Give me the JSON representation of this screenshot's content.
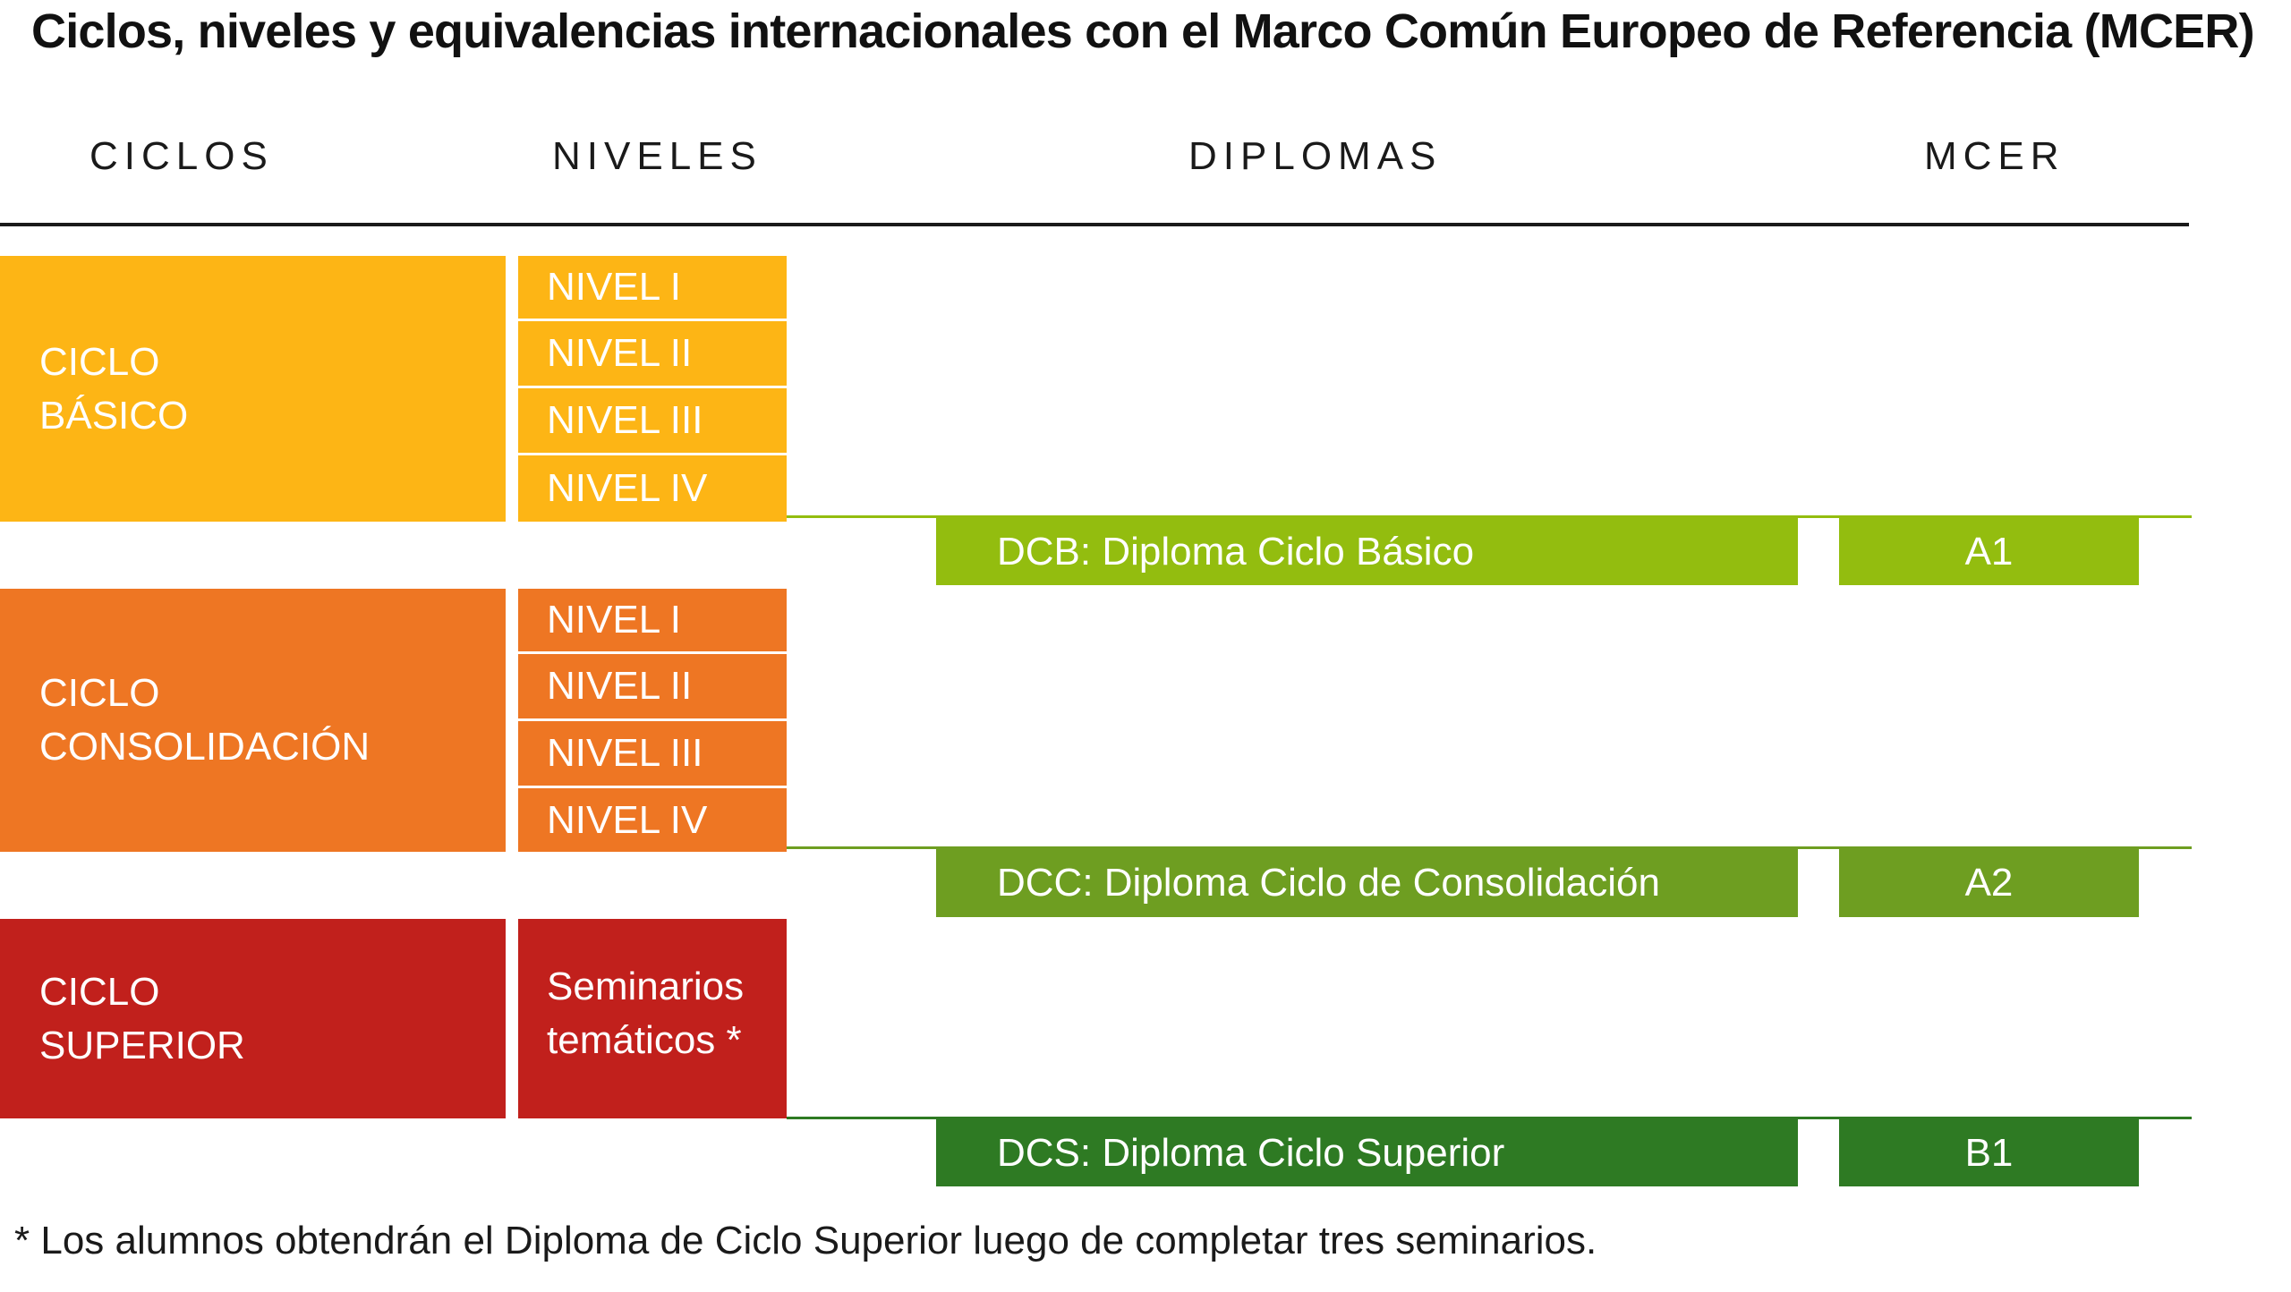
{
  "title": "Ciclos, niveles y equivalencias internacionales con el Marco Común Europeo de Referencia (MCER)",
  "headers": {
    "ciclos": "CICLOS",
    "niveles": "NIVELES",
    "diplomas": "DIPLOMAS",
    "mcer": "MCER"
  },
  "cycles": [
    {
      "line1": "CICLO",
      "line2": "BÁSICO",
      "color": "#FDB515",
      "levels": [
        "NIVEL I",
        "NIVEL II",
        "NIVEL III",
        "NIVEL IV"
      ],
      "diploma": "DCB: Diploma Ciclo Básico",
      "mcer": "A1",
      "green": "#93BD0F"
    },
    {
      "line1": "CICLO",
      "line2": "CONSOLIDACIÓN",
      "color": "#EE7623",
      "levels": [
        "NIVEL I",
        "NIVEL II",
        "NIVEL III",
        "NIVEL IV"
      ],
      "diploma": "DCC: Diploma Ciclo de Consolidación",
      "mcer": "A2",
      "green": "#6E9E21"
    },
    {
      "line1": "CICLO",
      "line2": "SUPERIOR",
      "color": "#C1201C",
      "levels": [
        "Seminarios",
        "temáticos *"
      ],
      "diploma": "DCS: Diploma Ciclo Superior",
      "mcer": "B1",
      "green": "#2E7A23"
    }
  ],
  "footnote": "*  Los alumnos obtendrán el Diploma de Ciclo Superior luego de completar tres seminarios."
}
